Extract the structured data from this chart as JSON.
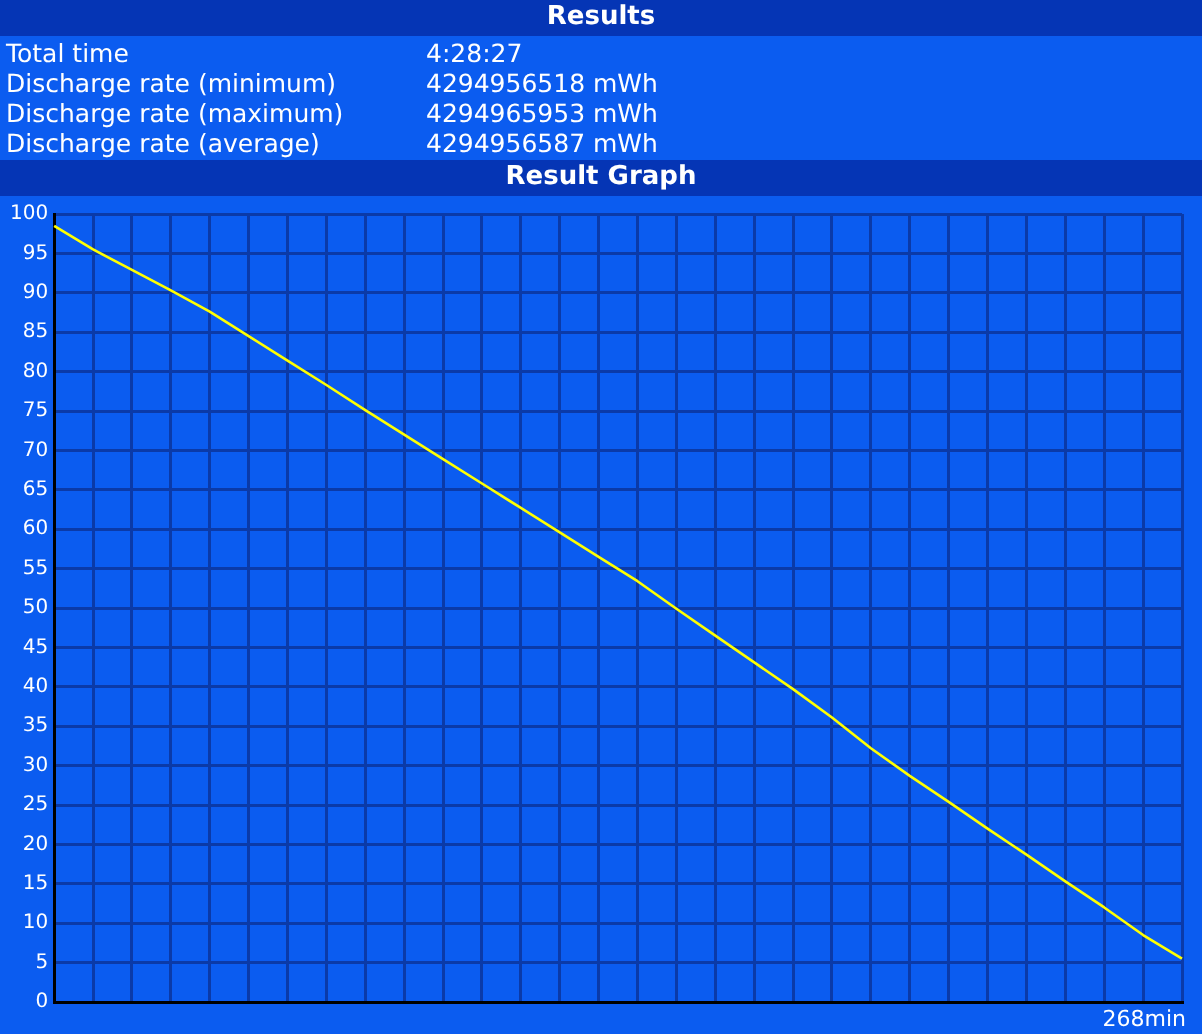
{
  "chart_data": {
    "type": "line",
    "title": "Results",
    "subtitle": "Result Graph",
    "annotations": [
      "Total time",
      "4:28:27",
      "Discharge rate (minimum)",
      "4294956518 mWh",
      "Discharge rate (maximum)",
      "4294965953 mWh",
      "Discharge rate (average)",
      "4294956587 mWh",
      "268min"
    ],
    "categories": [
      null,
      null,
      null,
      null,
      null,
      null,
      null,
      null,
      null,
      null,
      null,
      null,
      null,
      null,
      null,
      null,
      null,
      null,
      null,
      null,
      null,
      null,
      null,
      null,
      null,
      null,
      null,
      null,
      null,
      null
    ],
    "series": [
      {
        "color": "#ffff00",
        "values": [
          98.5,
          95.5,
          92.9,
          90.3,
          87.6,
          84.5,
          81.4,
          78.3,
          75.1,
          72.0,
          68.9,
          65.8,
          62.7,
          59.6,
          56.5,
          53.4,
          49.9,
          46.5,
          43.1,
          39.7,
          36.1,
          32.2,
          28.7,
          25.4,
          22.0,
          18.7,
          15.3,
          12.0,
          8.5,
          5.5
        ]
      }
    ],
    "ylim": [
      0,
      100
    ],
    "yticks": [
      0,
      5,
      10,
      15,
      20,
      25,
      30,
      35,
      40,
      45,
      50,
      55,
      60,
      65,
      70,
      75,
      80,
      85,
      90,
      95,
      100
    ],
    "tick_labels": "y",
    "grid": true,
    "legend": false,
    "marker": "none",
    "line_style": "solid"
  }
}
